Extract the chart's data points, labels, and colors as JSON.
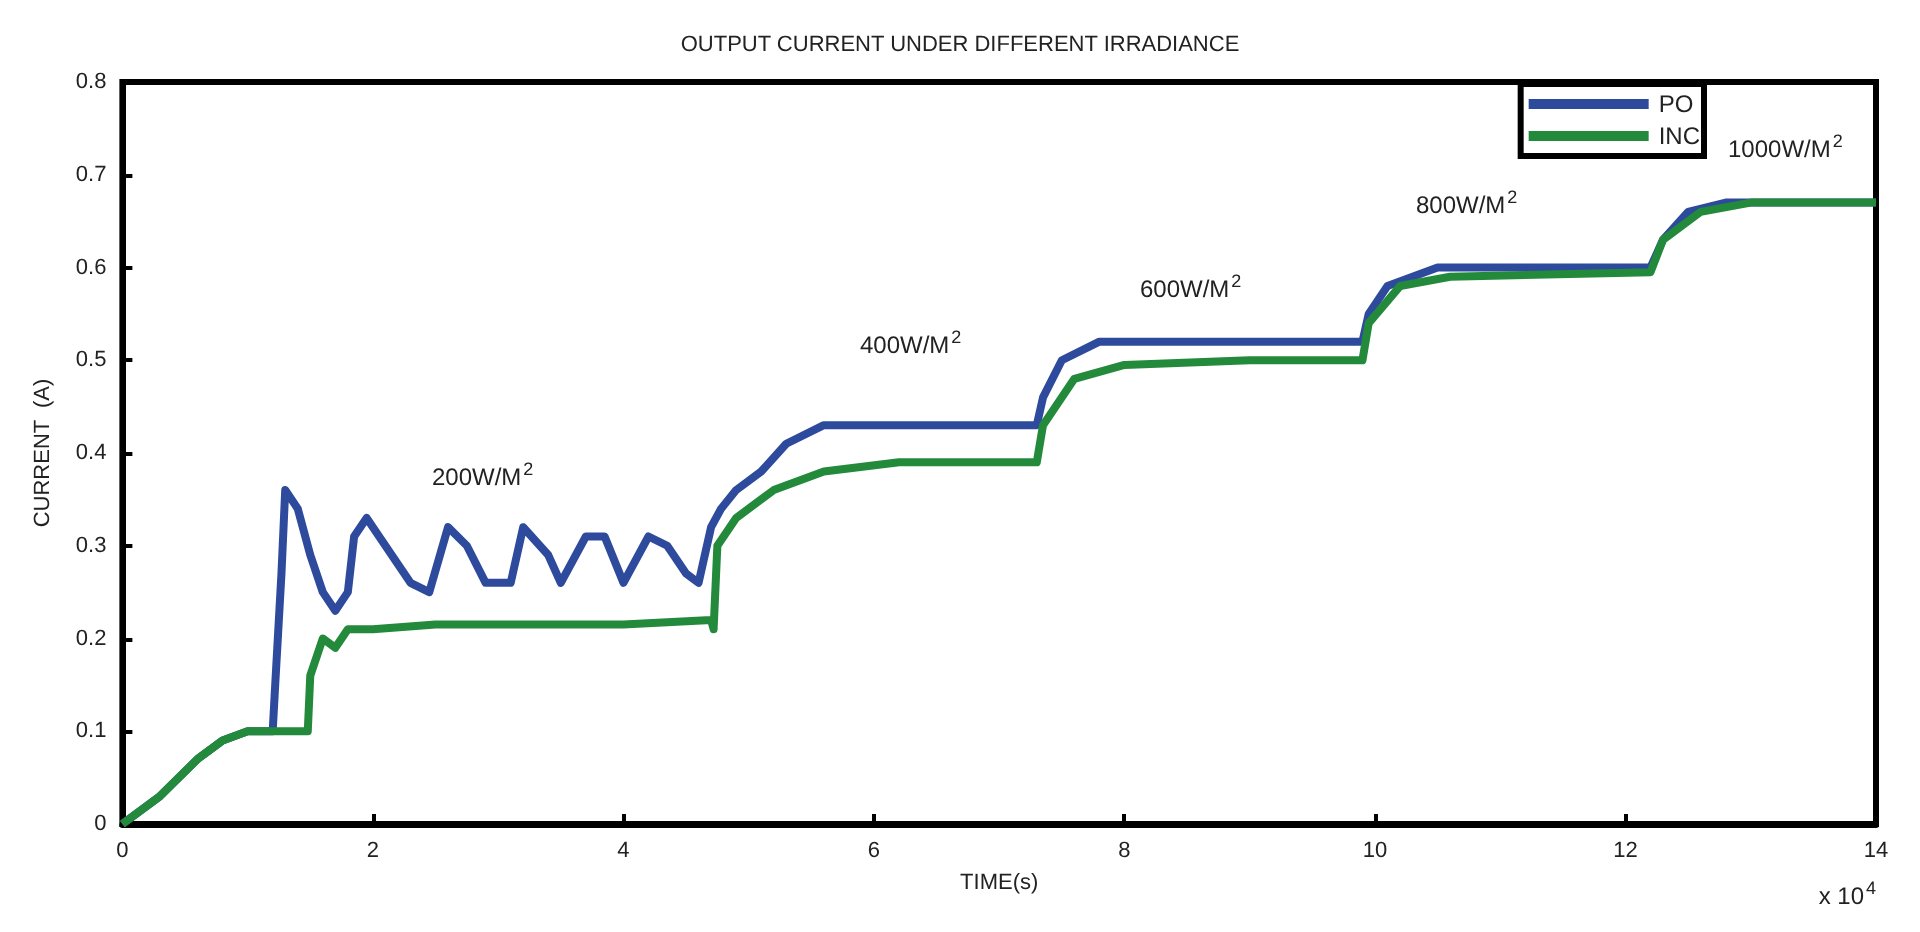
{
  "chart_data": {
    "type": "line",
    "title": "OUTPUT CURRENT UNDER DIFFERENT IRRADIANCE",
    "xlabel": "TIME(s)",
    "ylabel": "CURRENT  (A)",
    "annotations": [
      "200W/M$^{2}$",
      "400W/M$^{2}$",
      "600W/M$^{2}$",
      "800W/M$^{2}$",
      "1000W/M$^{2}$",
      "x 10$^{4}$"
    ],
    "xlim": [
      0,
      14
    ],
    "xticks": [
      0,
      2,
      4,
      6,
      8,
      10,
      12,
      14
    ],
    "ylim": [
      0,
      0.8
    ],
    "yticks": [
      0,
      0.1,
      0.2,
      0.3,
      0.4,
      0.5,
      0.6,
      0.7,
      0.8
    ],
    "grid": false,
    "legend": "top right",
    "marker": "none",
    "line_style": "solid",
    "series": [
      {
        "name": "PO",
        "color": "#2e4a9c",
        "x": [
          0,
          0.3,
          0.6,
          0.8,
          1.0,
          1.2,
          1.22,
          1.27,
          1.3,
          1.4,
          1.5,
          1.6,
          1.7,
          1.8,
          1.85,
          1.95,
          2.1,
          2.3,
          2.45,
          2.6,
          2.75,
          2.9,
          3.1,
          3.2,
          3.4,
          3.5,
          3.7,
          3.85,
          4.0,
          4.2,
          4.35,
          4.5,
          4.6,
          4.7,
          4.78,
          4.9,
          5.1,
          5.3,
          5.6,
          6.0,
          6.5,
          7.0,
          7.3,
          7.35,
          7.5,
          7.8,
          8.5,
          9.0,
          9.9,
          9.95,
          10.1,
          10.5,
          11.5,
          12.2,
          12.3,
          12.5,
          12.8,
          14
        ],
        "values": [
          0,
          0.03,
          0.07,
          0.09,
          0.1,
          0.1,
          0.15,
          0.27,
          0.36,
          0.34,
          0.29,
          0.25,
          0.23,
          0.25,
          0.31,
          0.33,
          0.3,
          0.26,
          0.25,
          0.32,
          0.3,
          0.26,
          0.26,
          0.32,
          0.29,
          0.26,
          0.31,
          0.31,
          0.26,
          0.31,
          0.3,
          0.27,
          0.26,
          0.32,
          0.34,
          0.36,
          0.38,
          0.41,
          0.43,
          0.43,
          0.43,
          0.43,
          0.43,
          0.46,
          0.5,
          0.52,
          0.52,
          0.52,
          0.52,
          0.55,
          0.58,
          0.6,
          0.6,
          0.6,
          0.63,
          0.66,
          0.67,
          0.67
        ]
      },
      {
        "name": "INC",
        "color": "#238a3c",
        "x": [
          0,
          0.3,
          0.6,
          0.8,
          1.0,
          1.48,
          1.5,
          1.6,
          1.7,
          1.8,
          2.0,
          2.5,
          3.0,
          4.0,
          4.7,
          4.72,
          4.75,
          4.9,
          5.2,
          5.6,
          6.2,
          7.3,
          7.35,
          7.6,
          8.0,
          9.0,
          9.9,
          9.95,
          10.2,
          10.6,
          12.2,
          12.3,
          12.6,
          13,
          14
        ],
        "values": [
          0,
          0.03,
          0.07,
          0.09,
          0.1,
          0.1,
          0.16,
          0.2,
          0.19,
          0.21,
          0.21,
          0.215,
          0.215,
          0.215,
          0.22,
          0.21,
          0.3,
          0.33,
          0.36,
          0.38,
          0.39,
          0.39,
          0.43,
          0.48,
          0.495,
          0.5,
          0.5,
          0.54,
          0.58,
          0.59,
          0.595,
          0.63,
          0.66,
          0.67,
          0.67
        ]
      }
    ]
  }
}
